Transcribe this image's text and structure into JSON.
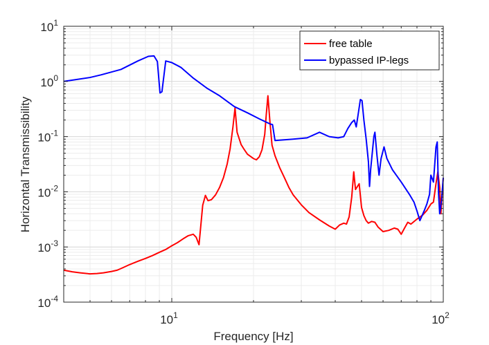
{
  "chart_data": {
    "type": "line",
    "xlabel": "Frequency [Hz]",
    "ylabel": "Horizontal Transmissibility",
    "x_scale": "log",
    "y_scale": "log",
    "xlim": [
      4,
      100
    ],
    "ylim": [
      0.0001,
      10
    ],
    "x_ticks": [
      {
        "value": 10,
        "base": "10",
        "exp": "1"
      },
      {
        "value": 100,
        "base": "10",
        "exp": "2"
      }
    ],
    "y_ticks": [
      {
        "value": 0.0001,
        "base": "10",
        "exp": "-4"
      },
      {
        "value": 0.001,
        "base": "10",
        "exp": "-3"
      },
      {
        "value": 0.01,
        "base": "10",
        "exp": "-2"
      },
      {
        "value": 0.1,
        "base": "10",
        "exp": "-1"
      },
      {
        "value": 1,
        "base": "10",
        "exp": "0"
      },
      {
        "value": 10,
        "base": "10",
        "exp": "1"
      }
    ],
    "grid": true,
    "minor_grid": true,
    "legend_position": "top-right",
    "series": [
      {
        "name": "free table",
        "color": "#ff0000",
        "points": [
          [
            4.0,
            0.00038
          ],
          [
            4.3,
            0.000355
          ],
          [
            4.6,
            0.00034
          ],
          [
            5.0,
            0.000325
          ],
          [
            5.3,
            0.00033
          ],
          [
            5.6,
            0.00034
          ],
          [
            6.0,
            0.00036
          ],
          [
            6.3,
            0.00038
          ],
          [
            6.6,
            0.00042
          ],
          [
            7.0,
            0.00048
          ],
          [
            7.5,
            0.00055
          ],
          [
            8.0,
            0.00062
          ],
          [
            8.5,
            0.0007
          ],
          [
            9.0,
            0.0008
          ],
          [
            9.5,
            0.0009
          ],
          [
            10.0,
            0.00105
          ],
          [
            10.5,
            0.0012
          ],
          [
            11.0,
            0.0014
          ],
          [
            11.5,
            0.0016
          ],
          [
            12.0,
            0.0017
          ],
          [
            12.3,
            0.0015
          ],
          [
            12.6,
            0.0011
          ],
          [
            13.0,
            0.0057
          ],
          [
            13.3,
            0.0086
          ],
          [
            13.6,
            0.0069
          ],
          [
            14.0,
            0.0072
          ],
          [
            14.5,
            0.0088
          ],
          [
            15.0,
            0.012
          ],
          [
            15.5,
            0.018
          ],
          [
            16.0,
            0.032
          ],
          [
            16.4,
            0.06
          ],
          [
            16.8,
            0.15
          ],
          [
            17.1,
            0.33
          ],
          [
            17.4,
            0.12
          ],
          [
            18.0,
            0.072
          ],
          [
            18.5,
            0.058
          ],
          [
            19.0,
            0.048
          ],
          [
            20.0,
            0.04
          ],
          [
            20.5,
            0.038
          ],
          [
            21.0,
            0.043
          ],
          [
            21.5,
            0.058
          ],
          [
            22.0,
            0.11
          ],
          [
            22.3,
            0.26
          ],
          [
            22.6,
            0.55
          ],
          [
            23.0,
            0.18
          ],
          [
            23.4,
            0.07
          ],
          [
            24.0,
            0.045
          ],
          [
            25.0,
            0.027
          ],
          [
            26.0,
            0.018
          ],
          [
            27.0,
            0.012
          ],
          [
            28.0,
            0.0088
          ],
          [
            30.0,
            0.0058
          ],
          [
            32.0,
            0.0042
          ],
          [
            35.0,
            0.0031
          ],
          [
            38.0,
            0.0024
          ],
          [
            40.0,
            0.0021
          ],
          [
            41.5,
            0.0025
          ],
          [
            43.0,
            0.0027
          ],
          [
            44.0,
            0.0026
          ],
          [
            45.0,
            0.0035
          ],
          [
            46.0,
            0.008
          ],
          [
            46.8,
            0.023
          ],
          [
            47.5,
            0.011
          ],
          [
            49.0,
            0.014
          ],
          [
            50.0,
            0.0052
          ],
          [
            51.0,
            0.0037
          ],
          [
            52.0,
            0.003
          ],
          [
            53.0,
            0.0027
          ],
          [
            54.5,
            0.0029
          ],
          [
            56.0,
            0.0028
          ],
          [
            57.5,
            0.0023
          ],
          [
            60.0,
            0.0019
          ],
          [
            63.0,
            0.002
          ],
          [
            66.0,
            0.0022
          ],
          [
            68.0,
            0.0021
          ],
          [
            70.0,
            0.0017
          ],
          [
            72.0,
            0.0022
          ],
          [
            74.0,
            0.0028
          ],
          [
            76.0,
            0.0026
          ],
          [
            80.0,
            0.0032
          ],
          [
            84.0,
            0.0038
          ],
          [
            87.0,
            0.0046
          ],
          [
            90.0,
            0.006
          ],
          [
            92.0,
            0.0065
          ],
          [
            94.0,
            0.014
          ],
          [
            95.5,
            0.023
          ],
          [
            97.0,
            0.012
          ],
          [
            98.0,
            0.004
          ],
          [
            99.0,
            0.009
          ],
          [
            100.0,
            0.018
          ]
        ]
      },
      {
        "name": "bypassed IP-legs",
        "color": "#0000ff",
        "points": [
          [
            4.0,
            1.0
          ],
          [
            5.0,
            1.18
          ],
          [
            5.5,
            1.32
          ],
          [
            6.5,
            1.65
          ],
          [
            7.5,
            2.35
          ],
          [
            8.2,
            2.85
          ],
          [
            8.6,
            2.9
          ],
          [
            8.85,
            2.3
          ],
          [
            9.05,
            0.62
          ],
          [
            9.2,
            0.65
          ],
          [
            9.5,
            2.35
          ],
          [
            10.0,
            2.2
          ],
          [
            10.8,
            1.8
          ],
          [
            12.0,
            1.15
          ],
          [
            13.5,
            0.75
          ],
          [
            15.0,
            0.55
          ],
          [
            17.0,
            0.35
          ],
          [
            19.0,
            0.27
          ],
          [
            21.0,
            0.21
          ],
          [
            23.0,
            0.17
          ],
          [
            23.5,
            0.165
          ],
          [
            24.0,
            0.085
          ],
          [
            28.0,
            0.09
          ],
          [
            31.5,
            0.095
          ],
          [
            35.0,
            0.12
          ],
          [
            38.0,
            0.1
          ],
          [
            41.0,
            0.095
          ],
          [
            43.0,
            0.1
          ],
          [
            44.5,
            0.14
          ],
          [
            46.0,
            0.18
          ],
          [
            47.0,
            0.2
          ],
          [
            47.8,
            0.15
          ],
          [
            48.5,
            0.24
          ],
          [
            49.5,
            0.47
          ],
          [
            50.2,
            0.45
          ],
          [
            51.0,
            0.2
          ],
          [
            52.0,
            0.09
          ],
          [
            53.0,
            0.035
          ],
          [
            53.5,
            0.0125
          ],
          [
            54.0,
            0.025
          ],
          [
            55.5,
            0.1
          ],
          [
            56.0,
            0.12
          ],
          [
            57.0,
            0.045
          ],
          [
            58.0,
            0.02
          ],
          [
            59.0,
            0.04
          ],
          [
            60.5,
            0.065
          ],
          [
            62.0,
            0.04
          ],
          [
            65.0,
            0.025
          ],
          [
            70.0,
            0.015
          ],
          [
            75.0,
            0.009
          ],
          [
            78.0,
            0.0065
          ],
          [
            80.0,
            0.0045
          ],
          [
            82.0,
            0.003
          ],
          [
            85.0,
            0.0045
          ],
          [
            87.0,
            0.006
          ],
          [
            89.0,
            0.009
          ],
          [
            90.0,
            0.02
          ],
          [
            92.0,
            0.015
          ],
          [
            94.0,
            0.065
          ],
          [
            95.0,
            0.08
          ],
          [
            96.0,
            0.01
          ],
          [
            97.0,
            0.004
          ],
          [
            98.5,
            0.007
          ],
          [
            100.0,
            0.018
          ]
        ]
      }
    ]
  }
}
